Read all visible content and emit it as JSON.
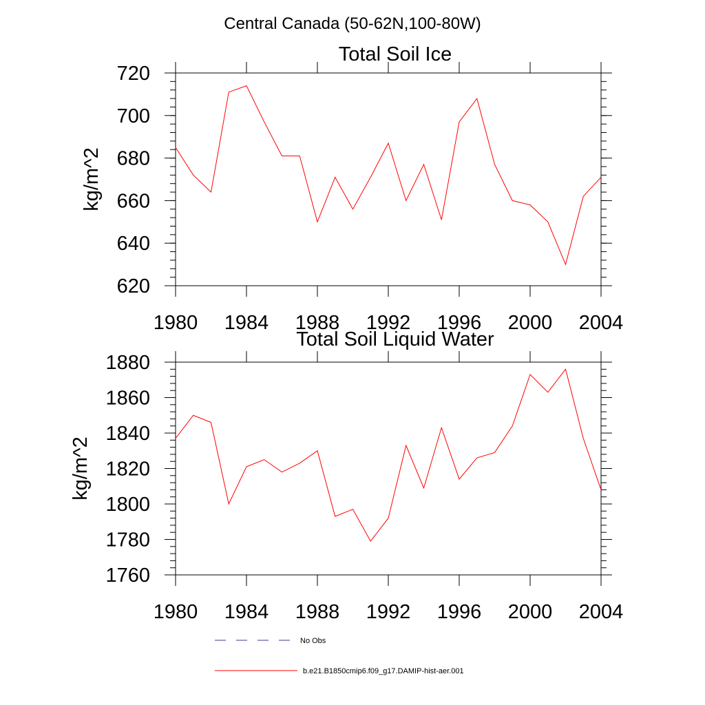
{
  "figure_title": "Central Canada (50-62N,100-80W)",
  "legend": [
    {
      "label": "No Obs",
      "color": "#3a3a9a",
      "style": "dashed"
    },
    {
      "label": "b.e21.B1850cmip6.f09_g17.DAMIP-hist-aer.001",
      "color": "#ff0000",
      "style": "solid"
    }
  ],
  "chart_data": [
    {
      "type": "line",
      "title": "Total Soil Ice",
      "xlabel": "",
      "ylabel": "kg/m^2",
      "xlim": [
        1980,
        2004
      ],
      "ylim": [
        620,
        720
      ],
      "xticks": [
        1980,
        1984,
        1988,
        1992,
        1996,
        2000,
        2004
      ],
      "yticks": [
        620,
        640,
        660,
        680,
        700,
        720
      ],
      "x": [
        1980,
        1981,
        1982,
        1983,
        1984,
        1985,
        1986,
        1987,
        1988,
        1989,
        1990,
        1991,
        1992,
        1993,
        1994,
        1995,
        1996,
        1997,
        1998,
        1999,
        2000,
        2001,
        2002,
        2003,
        2004
      ],
      "series": [
        {
          "name": "b.e21.B1850cmip6.f09_g17.DAMIP-hist-aer.001",
          "color": "#ff0000",
          "values": [
            685,
            672,
            664,
            711,
            714,
            697,
            681,
            681,
            650,
            671,
            656,
            671,
            687,
            660,
            677,
            651,
            697,
            708,
            677,
            660,
            658,
            650,
            630,
            662,
            671
          ]
        }
      ]
    },
    {
      "type": "line",
      "title": "Total Soil Liquid Water",
      "xlabel": "",
      "ylabel": "kg/m^2",
      "xlim": [
        1980,
        2004
      ],
      "ylim": [
        1760,
        1880
      ],
      "xticks": [
        1980,
        1984,
        1988,
        1992,
        1996,
        2000,
        2004
      ],
      "yticks": [
        1760,
        1780,
        1800,
        1820,
        1840,
        1860,
        1880
      ],
      "x": [
        1980,
        1981,
        1982,
        1983,
        1984,
        1985,
        1986,
        1987,
        1988,
        1989,
        1990,
        1991,
        1992,
        1993,
        1994,
        1995,
        1996,
        1997,
        1998,
        1999,
        2000,
        2001,
        2002,
        2003,
        2004
      ],
      "series": [
        {
          "name": "b.e21.B1850cmip6.f09_g17.DAMIP-hist-aer.001",
          "color": "#ff0000",
          "values": [
            1837,
            1850,
            1846,
            1800,
            1821,
            1825,
            1818,
            1823,
            1830,
            1793,
            1797,
            1779,
            1792,
            1833,
            1809,
            1843,
            1814,
            1826,
            1829,
            1844,
            1873,
            1863,
            1876,
            1837,
            1808
          ]
        }
      ]
    }
  ]
}
